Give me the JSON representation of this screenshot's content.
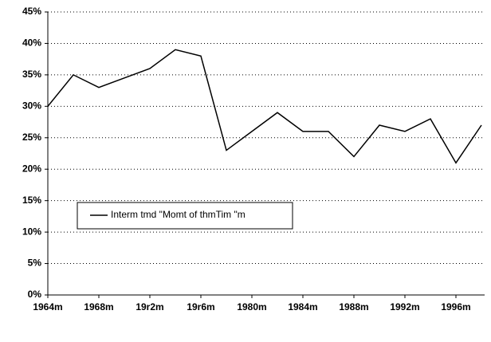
{
  "chart_data": {
    "type": "line",
    "categories": [
      "1964m",
      null,
      "1968m",
      null,
      "19r2m",
      null,
      "19r6m",
      null,
      "1980m",
      null,
      "1984m",
      null,
      "1988m",
      null,
      "1992m",
      null,
      "1996m",
      null
    ],
    "series": [
      {
        "name": "Interm tmd \"Momt of thmTim \"m",
        "color": "#000000",
        "values": [
          30,
          35,
          33,
          34.5,
          36,
          39,
          38,
          23,
          26,
          29,
          26,
          26,
          22,
          27,
          26,
          28,
          21,
          27
        ]
      }
    ],
    "ylim": [
      0,
      45
    ],
    "yticks": [
      {
        "value": 0,
        "label": "0%"
      },
      {
        "value": 5,
        "label": "5%"
      },
      {
        "value": 10,
        "label": "10%"
      },
      {
        "value": 15,
        "label": "15%"
      },
      {
        "value": 20,
        "label": "20%"
      },
      {
        "value": 25,
        "label": "25%"
      },
      {
        "value": 30,
        "label": "30%"
      },
      {
        "value": 35,
        "label": "35%"
      },
      {
        "value": 40,
        "label": "40%"
      },
      {
        "value": 45,
        "label": "45%"
      }
    ],
    "grid": true
  }
}
